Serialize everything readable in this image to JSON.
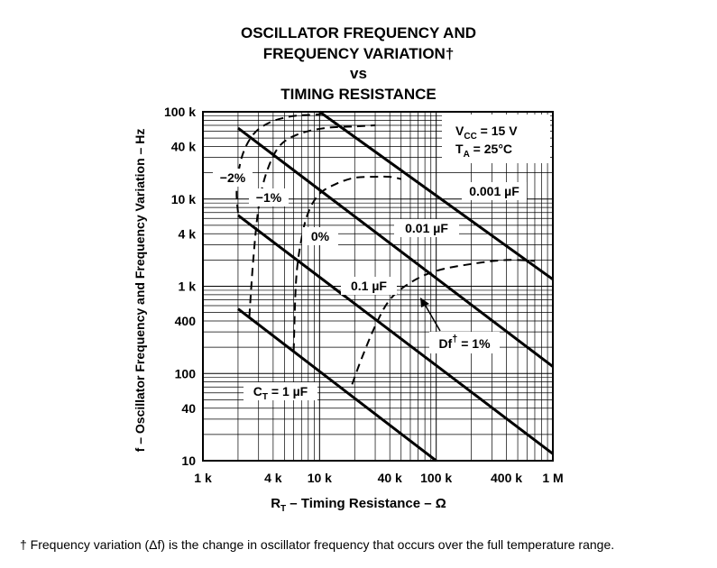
{
  "chart_data": {
    "type": "line",
    "title_lines": [
      "OSCILLATOR FREQUENCY AND",
      "FREQUENCY VARIATION†",
      "vs",
      "TIMING RESISTANCE"
    ],
    "xlabel": "R_T – Timing Resistance – Ω",
    "xlabel_main": "R",
    "xlabel_sub": "T",
    "xlabel_rest": " – Timing Resistance – Ω",
    "ylabel": "f – Oscillator Frequency and Frequency Variation – Hz",
    "x_scale": "log",
    "y_scale": "log",
    "xlim": [
      1000,
      1000000
    ],
    "ylim": [
      10,
      100000
    ],
    "x_ticks": [
      {
        "value": 1000,
        "label": "1 k"
      },
      {
        "value": 4000,
        "label": "4 k"
      },
      {
        "value": 10000,
        "label": "10 k"
      },
      {
        "value": 40000,
        "label": "40 k"
      },
      {
        "value": 100000,
        "label": "100 k"
      },
      {
        "value": 400000,
        "label": "400 k"
      },
      {
        "value": 1000000,
        "label": "1 M"
      }
    ],
    "y_ticks": [
      {
        "value": 10,
        "label": "10"
      },
      {
        "value": 40,
        "label": "40"
      },
      {
        "value": 100,
        "label": "100"
      },
      {
        "value": 400,
        "label": "400"
      },
      {
        "value": 1000,
        "label": "1 k"
      },
      {
        "value": 4000,
        "label": "4 k"
      },
      {
        "value": 10000,
        "label": "10 k"
      },
      {
        "value": 40000,
        "label": "40 k"
      },
      {
        "value": 100000,
        "label": "100 k"
      }
    ],
    "grid": true,
    "conditions": {
      "vcc": "V_CC = 15 V",
      "ta": "T_A = 25°C"
    },
    "series": [
      {
        "name": "C_T = 1 µF",
        "style": "solid",
        "x": [
          2000,
          100000
        ],
        "y": [
          550,
          10
        ]
      },
      {
        "name": "0.1 µF",
        "style": "solid",
        "x": [
          2000,
          1000000
        ],
        "y": [
          6500,
          12
        ]
      },
      {
        "name": "0.01 µF",
        "style": "solid",
        "x": [
          2000,
          1000000
        ],
        "y": [
          65000,
          120
        ]
      },
      {
        "name": "0.001 µF",
        "style": "solid",
        "x": [
          10000,
          1000000
        ],
        "y": [
          100000,
          1200
        ]
      },
      {
        "name": "−2%",
        "style": "dashed",
        "x": [
          2000,
          1950,
          2150,
          2700,
          3700,
          5500,
          8000,
          12000
        ],
        "y": [
          7000,
          13000,
          30000,
          55000,
          75000,
          88000,
          92000,
          95000
        ]
      },
      {
        "name": "−1%",
        "style": "dashed",
        "x": [
          2500,
          2700,
          3000,
          3500,
          4500,
          6500,
          11000,
          20000,
          30000
        ],
        "y": [
          450,
          2000,
          8000,
          20000,
          40000,
          55000,
          65000,
          68000,
          70000
        ]
      },
      {
        "name": "0%",
        "style": "dashed",
        "x": [
          6000,
          6300,
          7000,
          8000,
          10000,
          14000,
          20000,
          30000,
          40000,
          50000
        ],
        "y": [
          180,
          1200,
          3500,
          7000,
          11500,
          15000,
          17500,
          18000,
          18000,
          17000
        ]
      },
      {
        "name": "Df† = 1%",
        "style": "dashed",
        "x": [
          19000,
          23000,
          30000,
          40000,
          60000,
          100000,
          200000,
          400000,
          700000
        ],
        "y": [
          75,
          150,
          350,
          700,
          1100,
          1500,
          1800,
          2000,
          1950
        ]
      }
    ],
    "labels": {
      "ct1": {
        "pre": "C",
        "sub": "T",
        "post": " = 1 µF"
      },
      "c01": "0.1 µF",
      "c001": "0.01 µF",
      "c0001": "0.001 µF",
      "m2": "−2%",
      "m1": "−1%",
      "z0": "0%",
      "df": {
        "pre": "Df",
        "sup": "†",
        "post": " = 1%"
      }
    }
  },
  "footnote": "† Frequency variation (Δf) is the change in oscillator frequency that occurs over the full temperature range."
}
